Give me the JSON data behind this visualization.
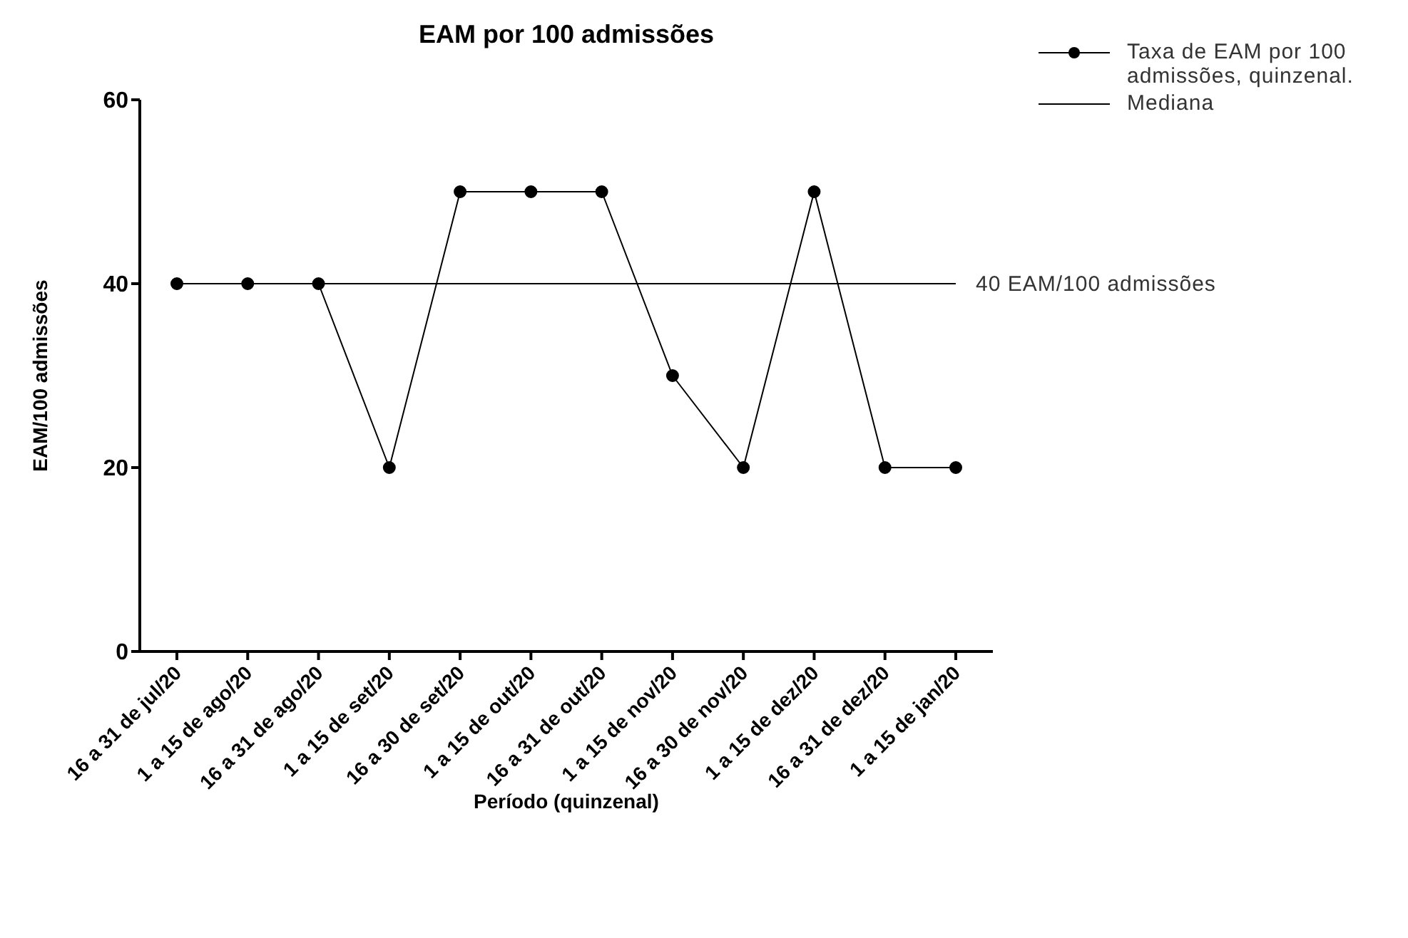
{
  "chart_data": {
    "type": "line",
    "title": "EAM por 100 admissões",
    "xlabel": "Período (quinzenal)",
    "ylabel": "EAM/100 admissões",
    "categories": [
      "16 a 31 de jul/20",
      "1 a 15 de ago/20",
      "16 a 31 de ago/20",
      "1 a 15 de set/20",
      "16 a 30 de set/20",
      "1 a 15 de out/20",
      "16 a 31 de out/20",
      "1 a 15 de nov/20",
      "16 a 30 de nov/20",
      "1 a 15 de dez/20",
      "16 a 31 de dez/20",
      "1 a 15 de jan/20"
    ],
    "series": [
      {
        "name": "Taxa de EAM por 100 admissões, quinzenal.",
        "color": "#000000",
        "marker": "circle",
        "values": [
          40,
          40,
          40,
          20,
          50,
          50,
          50,
          30,
          20,
          50,
          20,
          20
        ]
      },
      {
        "name": "Mediana",
        "color": "#000000",
        "marker": "none",
        "values": [
          40,
          40,
          40,
          40,
          40,
          40,
          40,
          40,
          40,
          40,
          40,
          40
        ]
      }
    ],
    "annotations": [
      "40 EAM/100 admissões"
    ],
    "ylim": [
      0,
      60
    ],
    "yticks": [
      0,
      20,
      40,
      60
    ],
    "grid": false,
    "legend": "top right"
  }
}
